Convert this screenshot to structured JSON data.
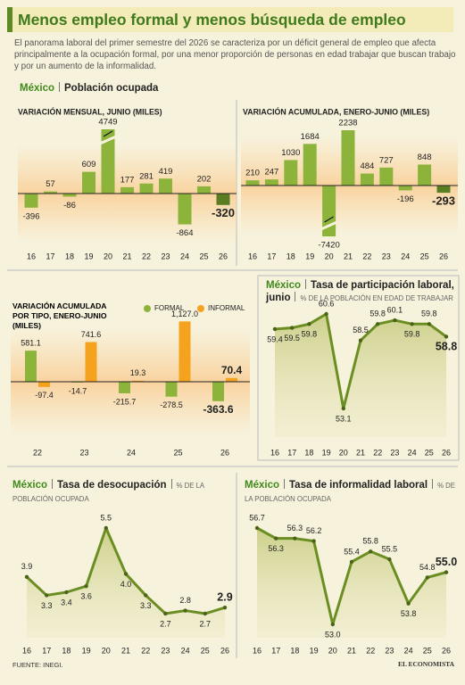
{
  "header": {
    "title": "Menos empleo formal y menos búsqueda de empleo",
    "subtitle": "El panorama laboral del primer semestre del 2026 se caracteriza por un déficit general de empleo que afecta principalmente a la ocupación formal, por una menor proporción de personas en edad trabajar que buscan trabajo y por un aumento de la informalidad."
  },
  "section": {
    "country": "México",
    "title": "Población ocupada"
  },
  "chart_data": [
    {
      "type": "bar",
      "title": "VARIACIÓN MENSUAL, JUNIO (MILES)",
      "categories": [
        "16",
        "17",
        "18",
        "19",
        "20",
        "21",
        "22",
        "23",
        "24",
        "25",
        "26"
      ],
      "values": [
        -396,
        57,
        -86,
        609,
        4749,
        177,
        281,
        419,
        -864,
        202,
        -320
      ],
      "color": "#8db43a",
      "highlight_color": "#5b7d22"
    },
    {
      "type": "bar",
      "title": "VARIACIÓN ACUMULADA, ENERO-JUNIO (MILES)",
      "categories": [
        "16",
        "17",
        "18",
        "19",
        "20",
        "21",
        "22",
        "23",
        "24",
        "25",
        "26"
      ],
      "values": [
        210,
        247,
        1030,
        1684,
        -7420,
        2238,
        484,
        727,
        -196,
        848,
        -293
      ],
      "color": "#8db43a",
      "highlight_color": "#5b7d22"
    },
    {
      "type": "grouped_bar",
      "title": "VARIACIÓN ACUMULADA POR TIPO, ENERO-JUNIO (MILES)",
      "categories": [
        "22",
        "23",
        "24",
        "25",
        "26"
      ],
      "series": [
        {
          "name": "FORMAL",
          "color": "#8db43a",
          "values": [
            581.1,
            -14.7,
            -215.7,
            -278.5,
            -363.6
          ]
        },
        {
          "name": "INFORMAL",
          "color": "#f5a31f",
          "values": [
            -97.4,
            741.6,
            19.3,
            1127.0,
            70.4
          ],
          "value_labels": [
            "-97.4",
            "741.6",
            "19.3",
            "1,127.0",
            "70.4"
          ]
        }
      ]
    },
    {
      "type": "line",
      "country": "México",
      "title": "Tasa de participación laboral, junio",
      "subtitle": "% DE LA POBLACIÓN EN EDAD DE TRABAJAR",
      "categories": [
        "16",
        "17",
        "18",
        "19",
        "20",
        "21",
        "22",
        "23",
        "24",
        "25",
        "26"
      ],
      "values": [
        59.4,
        59.5,
        59.8,
        60.6,
        53.1,
        58.5,
        59.8,
        60.1,
        59.8,
        59.8,
        58.8
      ],
      "color": "#6b8e23"
    },
    {
      "type": "line",
      "country": "México",
      "title": "Tasa de desocupación",
      "subtitle": "% DE LA POBLACIÓN OCUPADA",
      "categories": [
        "16",
        "17",
        "18",
        "19",
        "20",
        "21",
        "22",
        "23",
        "24",
        "25",
        "26"
      ],
      "values": [
        3.9,
        3.3,
        3.4,
        3.6,
        5.5,
        4.0,
        3.3,
        2.7,
        2.8,
        2.7,
        2.9
      ],
      "value_labels": [
        "3.9",
        "3.3",
        "3.4",
        "3.6",
        "5.5",
        "4.0",
        "3.3",
        "2.7",
        "2.8",
        "2.7",
        "2.9"
      ],
      "color": "#6b8e23"
    },
    {
      "type": "line",
      "country": "México",
      "title": "Tasa de informalidad laboral",
      "subtitle": "% DE LA POBLACIÓN OCUPADA",
      "categories": [
        "16",
        "17",
        "18",
        "19",
        "20",
        "21",
        "22",
        "23",
        "24",
        "25",
        "26"
      ],
      "values": [
        56.7,
        56.3,
        56.3,
        56.2,
        53.0,
        55.4,
        55.8,
        55.5,
        53.8,
        54.8,
        55.0
      ],
      "value_labels": [
        "56.7",
        "56.3",
        "56.3",
        "56.2",
        "53.0",
        "55.4",
        "55.8",
        "55.5",
        "53.8",
        "54.8",
        "55.0"
      ],
      "color": "#6b8e23"
    }
  ],
  "footer": {
    "source": "FUENTE: INEGI.",
    "logo": "EL ECONOMISTA"
  }
}
